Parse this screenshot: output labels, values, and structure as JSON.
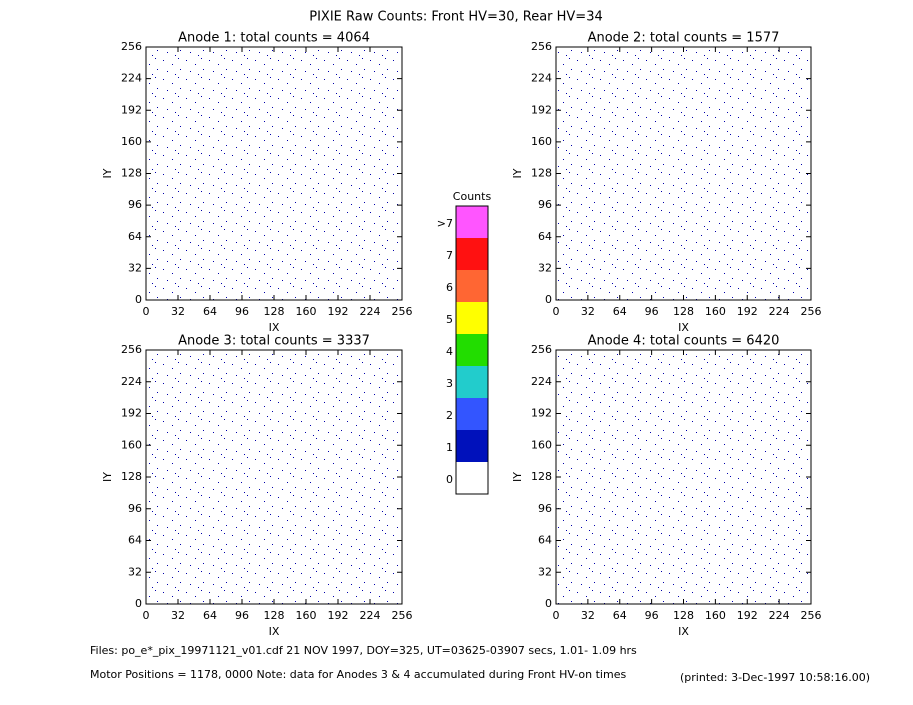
{
  "title": "PIXIE Raw Counts:  Front HV=30, Rear HV=34",
  "chart_data": [
    {
      "type": "scatter",
      "title": "Anode 1: total counts = 4064",
      "xlabel": "IX",
      "ylabel": "IY",
      "xlim": [
        0,
        256
      ],
      "ylim": [
        0,
        256
      ],
      "xticks": [
        0,
        32,
        64,
        96,
        128,
        160,
        192,
        224,
        256
      ],
      "yticks": [
        0,
        32,
        64,
        96,
        128,
        160,
        192,
        224,
        256
      ],
      "color": "#0000aa"
    },
    {
      "type": "scatter",
      "title": "Anode 2: total counts = 1577",
      "xlabel": "IX",
      "ylabel": "IY",
      "xlim": [
        0,
        256
      ],
      "ylim": [
        0,
        256
      ],
      "xticks": [
        0,
        32,
        64,
        96,
        128,
        160,
        192,
        224,
        256
      ],
      "yticks": [
        0,
        32,
        64,
        96,
        128,
        160,
        192,
        224,
        256
      ],
      "color": "#0000aa"
    },
    {
      "type": "scatter",
      "title": "Anode 3: total counts = 3337",
      "xlabel": "IX",
      "ylabel": "IY",
      "xlim": [
        0,
        256
      ],
      "ylim": [
        0,
        256
      ],
      "xticks": [
        0,
        32,
        64,
        96,
        128,
        160,
        192,
        224,
        256
      ],
      "yticks": [
        0,
        32,
        64,
        96,
        128,
        160,
        192,
        224,
        256
      ],
      "color": "#0000aa"
    },
    {
      "type": "scatter",
      "title": "Anode 4: total counts = 6420",
      "xlabel": "IX",
      "ylabel": "IY",
      "xlim": [
        0,
        256
      ],
      "ylim": [
        0,
        256
      ],
      "xticks": [
        0,
        32,
        64,
        96,
        128,
        160,
        192,
        224,
        256
      ],
      "yticks": [
        0,
        32,
        64,
        96,
        128,
        160,
        192,
        224,
        256
      ],
      "color": "#0000aa"
    }
  ],
  "colorbar": {
    "title": "Counts",
    "labels": [
      ">7",
      "7",
      "6",
      "5",
      "4",
      "3",
      "2",
      "1",
      "0"
    ],
    "colors": [
      "#ff55ff",
      "#ff1111",
      "#ff6633",
      "#ffff00",
      "#22dd00",
      "#22cccc",
      "#3355ff",
      "#0011bb",
      "#ffffff"
    ]
  },
  "footer": {
    "files": "Files: po_e*_pix_19971121_v01.cdf    21 NOV 1997, DOY=325, UT=03625-03907 secs,  1.01- 1.09 hrs",
    "motor": "Motor Positions = 1178, 0000   Note: data for Anodes 3 & 4 accumulated during Front HV-on times",
    "printed": "(printed:  3-Dec-1997 10:58:16.00)"
  }
}
